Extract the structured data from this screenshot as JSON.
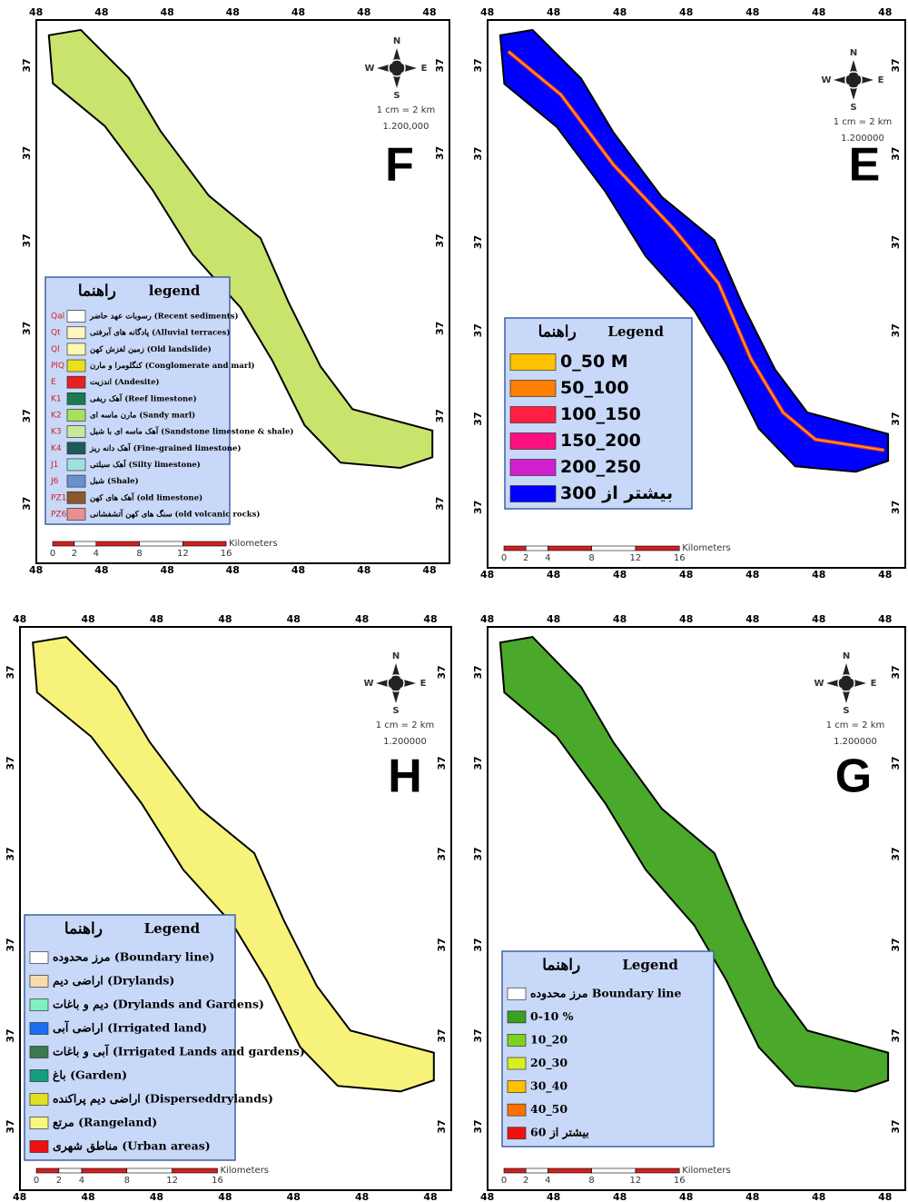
{
  "coord_labels": {
    "lon": "48",
    "lat": "37"
  },
  "compass": {
    "n": "N",
    "e": "E",
    "s": "S",
    "w": "W"
  },
  "scale_bar": {
    "label": "Kilometers",
    "ticks": [
      0,
      2,
      4,
      8,
      12,
      16
    ]
  },
  "panels": [
    {
      "letter": "F",
      "scale": "1 cm = 2 km",
      "ratio": "1.200,000",
      "map_color": "#c8e46c",
      "legend": {
        "title_fa": "راهنما",
        "title_en": "legend",
        "items": [
          {
            "code": "Qal",
            "text": "رسوبات عهد حاضر (Recent sediments)",
            "color": "#ffffff"
          },
          {
            "code": "Qt",
            "text": "پادگانه های آبرفتی (Alluvial terraces)",
            "color": "#fff6c0"
          },
          {
            "code": "Ql",
            "text": "زمین لغزش کهن (Old landslide)",
            "color": "#fff8b0"
          },
          {
            "code": "PlQ",
            "text": "کنگلومرا و مارن (Conglomerate and marl)",
            "color": "#e8e020"
          },
          {
            "code": "E",
            "text": "اندزیت (Andesite)",
            "color": "#e82020"
          },
          {
            "code": "K1",
            "text": "آهک ریفی (Reef limestone)",
            "color": "#1a7a50"
          },
          {
            "code": "K2",
            "text": "مارن ماسه ای (Sandy marl)",
            "color": "#a8e060"
          },
          {
            "code": "K3",
            "text": "آهک ماسه ای با شیل (Sandstone limestone & shale)",
            "color": "#c8e8a0"
          },
          {
            "code": "K4",
            "text": "آهک دانه ریز (Fine-grained limestone)",
            "color": "#1e5a5a"
          },
          {
            "code": "J1",
            "text": "آهک سیلتی (Silty limestone)",
            "color": "#a0e0e0"
          },
          {
            "code": "J6",
            "text": "شیل (Shale)",
            "color": "#6a90d0"
          },
          {
            "code": "PZ1",
            "text": "آهک های کهن (old limestone)",
            "color": "#8a5a2a"
          },
          {
            "code": "PZ6",
            "text": "سنگ های کهن آتشفشانی (old volcanic rocks)",
            "color": "#e89090"
          }
        ]
      }
    },
    {
      "letter": "E",
      "scale": "1 cm = 2 km",
      "ratio": "1.200000",
      "map_color": "#0000ff",
      "legend": {
        "title_fa": "راهنما",
        "title_en": "Legend",
        "items": [
          {
            "text": "0_50 M",
            "color": "#ffc000"
          },
          {
            "text": "50_100",
            "color": "#ff7f00"
          },
          {
            "text": "100_150",
            "color": "#ff2040"
          },
          {
            "text": "150_200",
            "color": "#ff1080"
          },
          {
            "text": "200_250",
            "color": "#d020d0"
          },
          {
            "text": "بیشتر از 300",
            "color": "#0000ff"
          }
        ]
      }
    },
    {
      "letter": "H",
      "scale": "1 cm = 2 km",
      "ratio": "1.200000",
      "map_color": "#f7f37a",
      "legend": {
        "title_fa": "راهنما",
        "title_en": "Legend",
        "items": [
          {
            "text": "مرز محدوده (Boundary line)",
            "color": "#ffffff"
          },
          {
            "text": "اراضی دیم (Drylands)",
            "color": "#f8dcb0"
          },
          {
            "text": "دیم و باغات (Drylands and Gardens)",
            "color": "#80f0c0"
          },
          {
            "text": "اراضی آبی (Irrigated land)",
            "color": "#1a70f0"
          },
          {
            "text": "آبی و باغات (Irrigated Lands and gardens)",
            "color": "#3a7a50"
          },
          {
            "text": "باغ (Garden)",
            "color": "#10a080"
          },
          {
            "text": "اراضی دیم پراکنده (Disperseddrylands)",
            "color": "#e0e020"
          },
          {
            "text": "مرتع (Rangeland)",
            "color": "#f8f880"
          },
          {
            "text": "مناطق شهری (Urban areas)",
            "color": "#f01010"
          }
        ]
      }
    },
    {
      "letter": "G",
      "scale": "1 cm = 2 km",
      "ratio": "1.200000",
      "map_color": "#4aa82a",
      "legend": {
        "title_fa": "راهنما",
        "title_en": "Legend",
        "items": [
          {
            "text": "مرز محدوده Boundary line",
            "color": "#ffffff"
          },
          {
            "text": "0-10 %",
            "color": "#3aa020"
          },
          {
            "text": "10_20",
            "color": "#80d020"
          },
          {
            "text": "20_30",
            "color": "#d8f020"
          },
          {
            "text": "30_40",
            "color": "#ffc000"
          },
          {
            "text": "40_50",
            "color": "#ff7000"
          },
          {
            "text": "بیشتر از 60",
            "color": "#f01010"
          }
        ]
      }
    }
  ]
}
